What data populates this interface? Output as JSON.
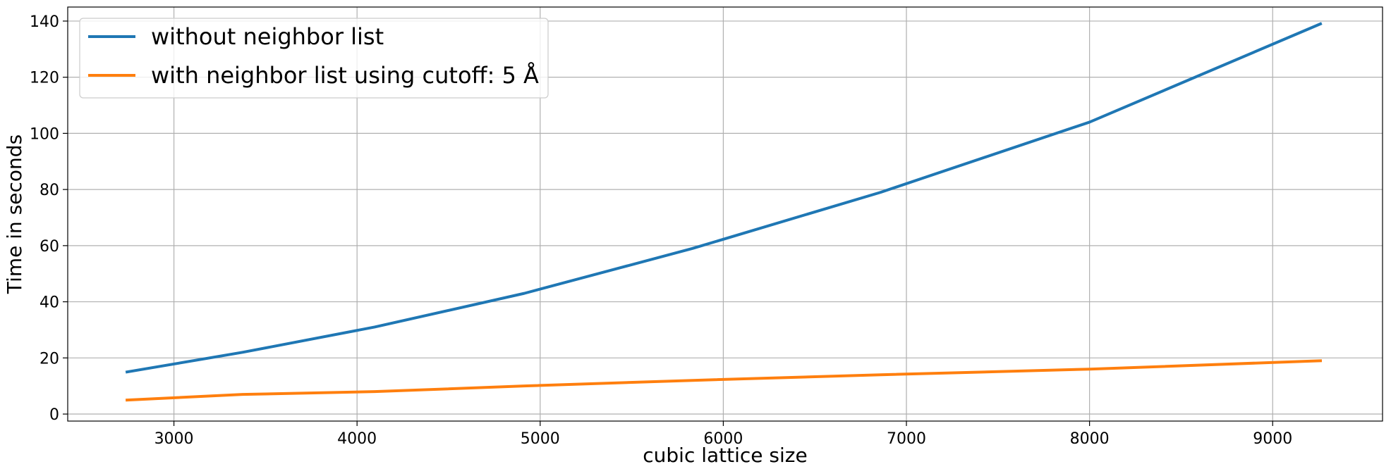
{
  "chart_data": {
    "type": "line",
    "title": "",
    "xlabel": "cubic lattice size",
    "ylabel": "Time in seconds",
    "xlim": [
      2420,
      9600
    ],
    "ylim": [
      -2.5,
      145
    ],
    "x_ticks": [
      3000,
      4000,
      5000,
      6000,
      7000,
      8000,
      9000
    ],
    "y_ticks": [
      0,
      20,
      40,
      60,
      80,
      100,
      120,
      140
    ],
    "grid": true,
    "legend_position": "upper left",
    "series": [
      {
        "name": "without neighbor list",
        "color": "#1f77b4",
        "x": [
          2744,
          3375,
          4096,
          4913,
          5832,
          6859,
          8000,
          9261
        ],
        "y": [
          15,
          22,
          31,
          43,
          59,
          79,
          104,
          139
        ]
      },
      {
        "name": "with neighbor list using cutoff: 5 Å",
        "color": "#ff7f0e",
        "x": [
          2744,
          3375,
          4096,
          4913,
          5832,
          6859,
          8000,
          9261
        ],
        "y": [
          5,
          7,
          8,
          10,
          12,
          14,
          16,
          19
        ]
      }
    ]
  }
}
